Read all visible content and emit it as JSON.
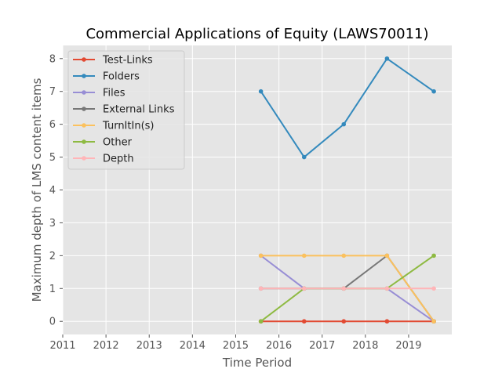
{
  "chart_data": {
    "type": "line",
    "title": "Commercial Applications of Equity (LAWS70011)",
    "xlabel": "Time Period",
    "ylabel": "Maximum depth of LMS content items",
    "xlim": [
      2011,
      2019.999
    ],
    "ylim": [
      -0.4,
      8.4
    ],
    "x_ticks": [
      "2011",
      "2012",
      "2013",
      "2014",
      "2015",
      "2016",
      "2017",
      "2018",
      "2019"
    ],
    "y_ticks": [
      "0",
      "1",
      "2",
      "3",
      "4",
      "5",
      "6",
      "7",
      "8"
    ],
    "x": [
      "2015-08",
      "2016-08",
      "2017-07",
      "2018-07",
      "2019-08"
    ],
    "grid": true,
    "legend_position": "upper-left",
    "series": [
      {
        "name": "Test-Links",
        "color": "#E24A33",
        "values": [
          0,
          0,
          0,
          0,
          0
        ]
      },
      {
        "name": "Folders",
        "color": "#348ABD",
        "values": [
          7,
          5,
          6,
          8,
          7
        ]
      },
      {
        "name": "Files",
        "color": "#988ED5",
        "values": [
          2,
          1,
          1,
          1,
          0
        ]
      },
      {
        "name": "External Links",
        "color": "#777777",
        "values": [
          1,
          1,
          1,
          2,
          0
        ]
      },
      {
        "name": "TurnItIn(s)",
        "color": "#FBC15E",
        "values": [
          2,
          2,
          2,
          2,
          0
        ]
      },
      {
        "name": "Other",
        "color": "#8EBA42",
        "values": [
          0,
          1,
          1,
          1,
          2
        ]
      },
      {
        "name": "Depth",
        "color": "#FFB5B8",
        "values": [
          1,
          1,
          1,
          1,
          1
        ]
      }
    ]
  }
}
